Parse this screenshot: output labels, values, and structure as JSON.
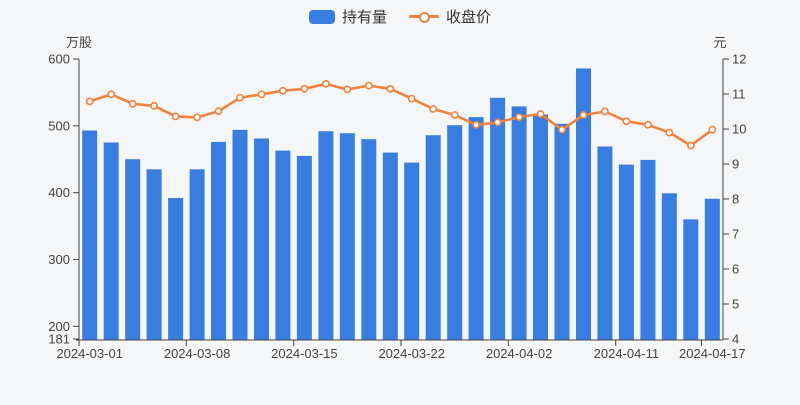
{
  "legend": {
    "items": [
      {
        "label": "持有量",
        "icon": "bar-swatch"
      },
      {
        "label": "收盘价",
        "icon": "line-swatch"
      }
    ]
  },
  "axes_units": {
    "left": "万股",
    "right": "元"
  },
  "colors": {
    "bar": "#3a7de0",
    "line": "#f0823f",
    "marker_fill": "#ffffff",
    "text": "#444444",
    "axis": "#444444",
    "background": "#f5f6f7"
  },
  "chart_data": {
    "type": "combo",
    "x": [
      "2024-03-01",
      "2024-03-04",
      "2024-03-05",
      "2024-03-06",
      "2024-03-07",
      "2024-03-08",
      "2024-03-11",
      "2024-03-12",
      "2024-03-13",
      "2024-03-14",
      "2024-03-15",
      "2024-03-18",
      "2024-03-19",
      "2024-03-20",
      "2024-03-21",
      "2024-03-22",
      "2024-03-25",
      "2024-03-26",
      "2024-03-27",
      "2024-03-28",
      "2024-04-02",
      "2024-04-03",
      "2024-04-08",
      "2024-04-09",
      "2024-04-10",
      "2024-04-11",
      "2024-04-12",
      "2024-04-15",
      "2024-04-16",
      "2024-04-17"
    ],
    "x_label_indices": [
      0,
      5,
      10,
      15,
      20,
      25,
      29
    ],
    "x_axis_visible_labels": [
      "2024-03-01",
      "2024-03-08",
      "2024-03-15",
      "2024-03-22",
      "2024-04-02",
      "2024-04-11",
      "2024-04-17"
    ],
    "series": [
      {
        "name": "持有量",
        "type": "bar",
        "yaxis": "left",
        "unit": "万股",
        "color": "#3a7de0",
        "values": [
          493,
          475,
          450,
          435,
          392,
          435,
          476,
          494,
          481,
          463,
          455,
          492,
          489,
          480,
          460,
          445,
          486,
          501,
          513,
          542,
          529,
          517,
          503,
          586,
          469,
          442,
          449,
          399,
          360,
          391
        ]
      },
      {
        "name": "收盘价",
        "type": "line",
        "yaxis": "right",
        "unit": "元",
        "color": "#f0823f",
        "values": [
          10.79,
          10.99,
          10.72,
          10.66,
          10.36,
          10.33,
          10.51,
          10.89,
          10.99,
          11.09,
          11.15,
          11.29,
          11.13,
          11.24,
          11.15,
          10.87,
          10.57,
          10.4,
          10.12,
          10.19,
          10.34,
          10.43,
          9.98,
          10.4,
          10.5,
          10.22,
          10.12,
          9.9,
          9.53,
          9.98
        ]
      }
    ],
    "left_axis": {
      "unit": "万股",
      "min": 181,
      "max": 600,
      "ticks": [
        600,
        500,
        400,
        300,
        200,
        181
      ]
    },
    "right_axis": {
      "unit": "元",
      "min": 4,
      "max": 12,
      "ticks": [
        12,
        11,
        10,
        9,
        8,
        7,
        6,
        5,
        4
      ]
    },
    "legend_position": "top-center",
    "grid": false
  }
}
